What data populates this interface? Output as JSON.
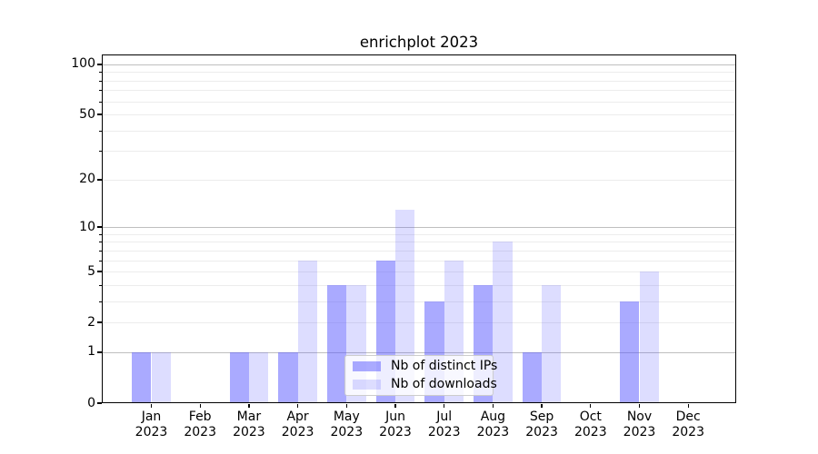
{
  "chart_data": {
    "type": "bar",
    "title": "enrichplot 2023",
    "categories": [
      "Jan",
      "Feb",
      "Mar",
      "Apr",
      "May",
      "Jun",
      "Jul",
      "Aug",
      "Sep",
      "Oct",
      "Nov",
      "Dec"
    ],
    "x_year_label": "2023",
    "series": [
      {
        "name": "Nb of distinct IPs",
        "color": "rgba(85,85,255,0.5)",
        "values": [
          1,
          0,
          1,
          1,
          4,
          6,
          3,
          4,
          1,
          0,
          3,
          0
        ]
      },
      {
        "name": "Nb of downloads",
        "color": "rgba(85,85,255,0.2)",
        "values": [
          1,
          0,
          1,
          6,
          4,
          13,
          6,
          8,
          4,
          0,
          5,
          0
        ]
      }
    ],
    "yscale": "log1p",
    "ylim": [
      0,
      114.5
    ],
    "yticks": [
      0,
      1,
      2,
      5,
      10,
      20,
      50,
      100
    ],
    "grid": {
      "major": [
        1,
        10,
        100
      ],
      "minor": [
        2,
        3,
        4,
        5,
        6,
        7,
        8,
        9,
        20,
        30,
        40,
        50,
        60,
        70,
        80,
        90
      ]
    },
    "legend": {
      "location": "lower center"
    },
    "colors": {
      "frame": "#000000",
      "grid_major": "#bfbfbf",
      "grid_minor": "#ececec"
    }
  }
}
